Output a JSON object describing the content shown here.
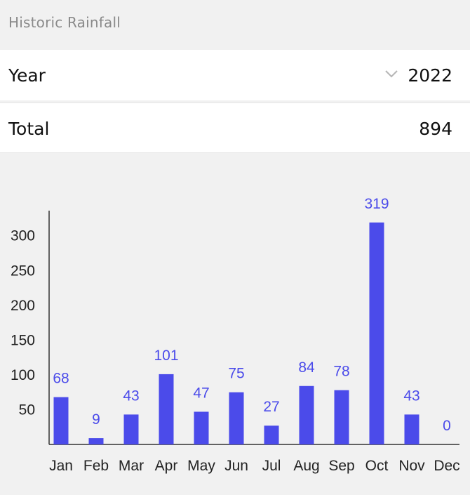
{
  "header": {
    "title": "Historic Rainfall"
  },
  "year_row": {
    "label": "Year",
    "value": "2022"
  },
  "total_row": {
    "label": "Total",
    "value": "894"
  },
  "colors": {
    "bar": "#4b4bea",
    "value_label": "#4b4bea",
    "axis": "#333333",
    "tick_text": "#222222"
  },
  "chart_data": {
    "type": "bar",
    "categories": [
      "Jan",
      "Feb",
      "Mar",
      "Apr",
      "May",
      "Jun",
      "Jul",
      "Aug",
      "Sep",
      "Oct",
      "Nov",
      "Dec"
    ],
    "values": [
      68,
      9,
      43,
      101,
      47,
      75,
      27,
      84,
      78,
      319,
      43,
      0
    ],
    "title": "",
    "xlabel": "",
    "ylabel": "",
    "yticks": [
      50,
      100,
      150,
      200,
      250,
      300
    ],
    "ylim": [
      0,
      340
    ],
    "grid": false,
    "data_labels": true
  }
}
